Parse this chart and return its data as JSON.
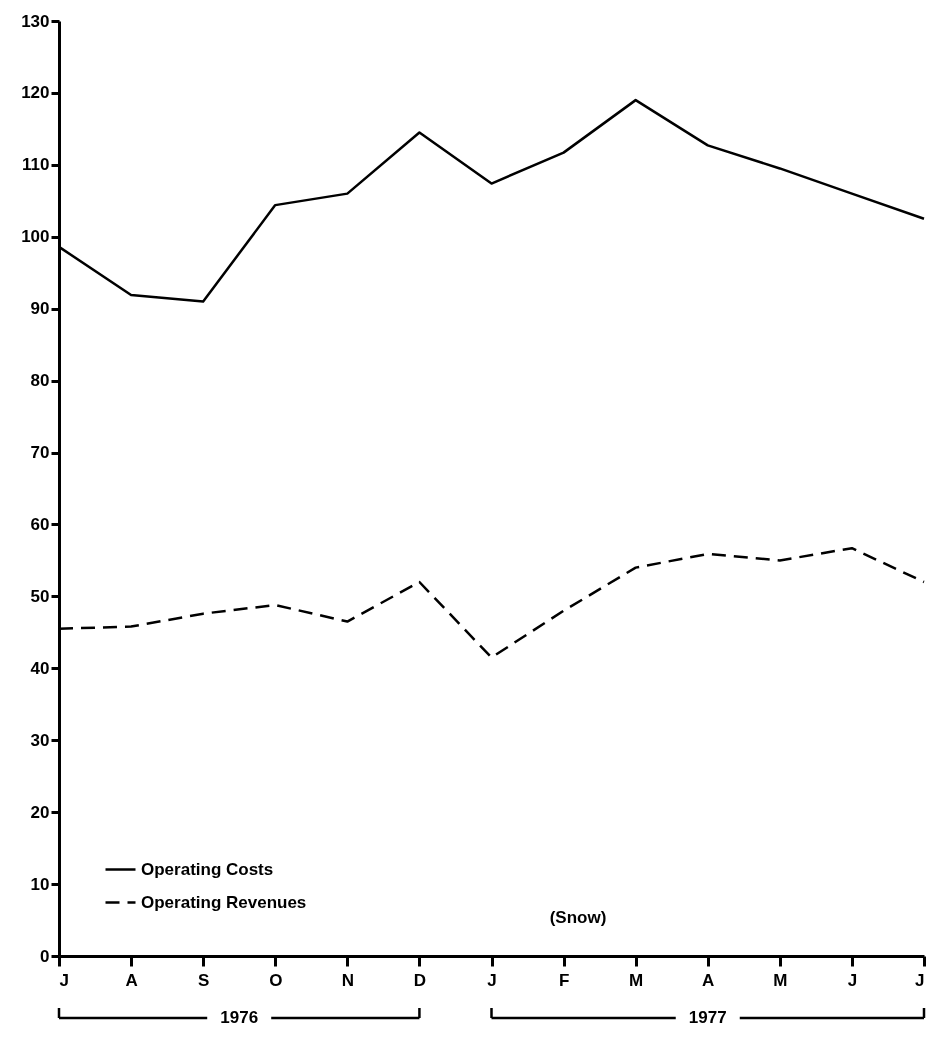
{
  "chart_data": {
    "type": "line",
    "categories": [
      "J",
      "A",
      "S",
      "O",
      "N",
      "D",
      "J",
      "F",
      "M",
      "A",
      "M",
      "J",
      "J"
    ],
    "series": [
      {
        "name": "Operating Costs",
        "color": "#000000",
        "line_style": "solid",
        "values": [
          98.6,
          91.9,
          91,
          104.4,
          106,
          114.5,
          107.4,
          111.7,
          119,
          112.7,
          109.5,
          106,
          102.5
        ]
      },
      {
        "name": "Operating Revenues",
        "color": "#000000",
        "line_style": "dashed",
        "values": [
          45.5,
          45.8,
          47.6,
          48.8,
          46.5,
          52,
          41.5,
          48,
          54,
          55.9,
          55,
          56.7,
          52
        ]
      }
    ],
    "ylim": [
      0,
      130
    ],
    "yticks": [
      0,
      10,
      20,
      30,
      40,
      50,
      60,
      70,
      80,
      90,
      100,
      110,
      120,
      130
    ],
    "grid": false,
    "marker": "none",
    "legend": "bottom left",
    "annotations": [
      "(Snow)",
      "1976",
      "1977"
    ]
  }
}
